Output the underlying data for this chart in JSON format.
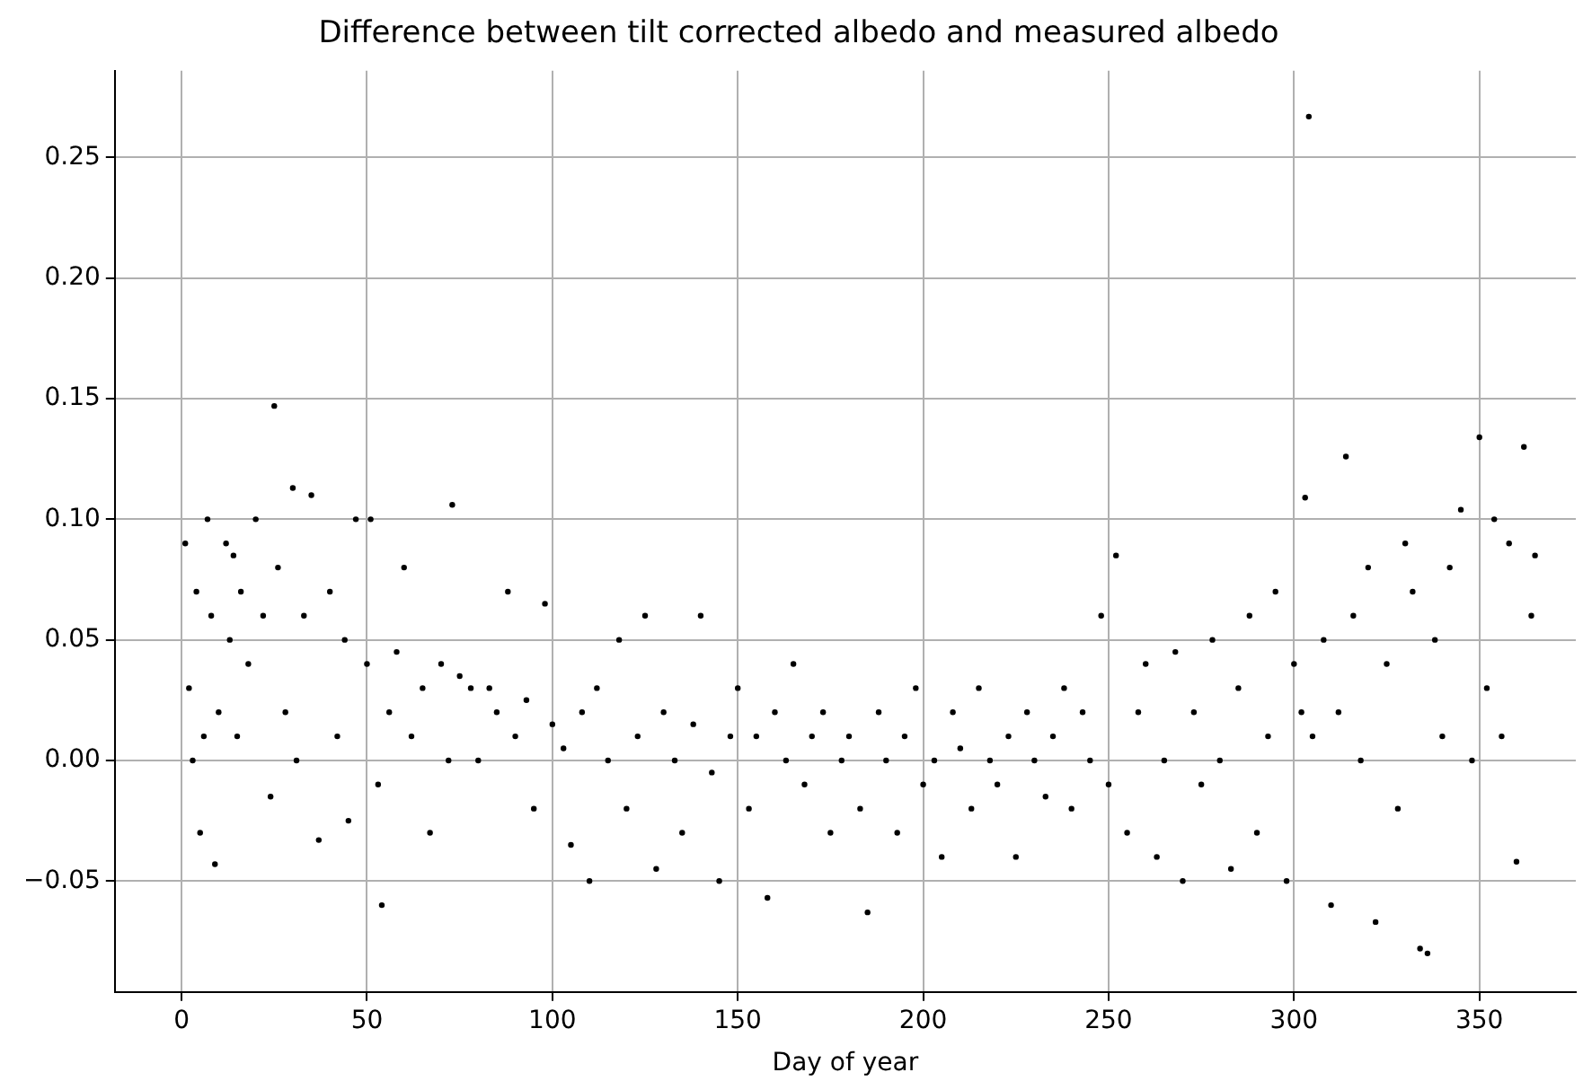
{
  "chart_data": {
    "type": "scatter",
    "title": "Difference between tilt corrected albedo and measured albedo",
    "xlabel": "Day of year",
    "x": [
      1,
      2,
      3,
      4,
      5,
      6,
      7,
      8,
      9,
      10,
      12,
      13,
      14,
      15,
      16,
      18,
      20,
      22,
      24,
      25,
      26,
      28,
      30,
      31,
      33,
      35,
      37,
      40,
      42,
      44,
      45,
      47,
      50,
      51,
      53,
      54,
      56,
      58,
      60,
      62,
      65,
      67,
      70,
      72,
      73,
      75,
      78,
      80,
      83,
      85,
      88,
      90,
      93,
      95,
      98,
      100,
      103,
      105,
      108,
      110,
      112,
      115,
      118,
      120,
      123,
      125,
      128,
      130,
      133,
      135,
      138,
      140,
      143,
      145,
      148,
      150,
      153,
      155,
      158,
      160,
      163,
      165,
      168,
      170,
      173,
      175,
      178,
      180,
      183,
      185,
      188,
      190,
      193,
      195,
      198,
      200,
      203,
      205,
      208,
      210,
      213,
      215,
      218,
      220,
      223,
      225,
      228,
      230,
      233,
      235,
      238,
      240,
      243,
      245,
      248,
      250,
      252,
      255,
      258,
      260,
      263,
      265,
      268,
      270,
      273,
      275,
      278,
      280,
      283,
      285,
      288,
      290,
      293,
      295,
      298,
      300,
      302,
      303,
      304,
      305,
      308,
      310,
      312,
      314,
      316,
      318,
      320,
      322,
      325,
      328,
      330,
      332,
      334,
      336,
      338,
      340,
      342,
      345,
      348,
      350,
      352,
      354,
      356,
      358,
      360,
      362,
      364,
      365
    ],
    "values": [
      0.09,
      0.03,
      0.0,
      0.07,
      -0.03,
      0.01,
      0.1,
      0.06,
      -0.043,
      0.02,
      0.09,
      0.05,
      0.085,
      0.01,
      0.07,
      0.04,
      0.1,
      0.06,
      -0.015,
      0.147,
      0.08,
      0.02,
      0.113,
      0.0,
      0.06,
      0.11,
      -0.033,
      0.07,
      0.01,
      0.05,
      -0.025,
      0.1,
      0.04,
      0.1,
      -0.01,
      -0.06,
      0.02,
      0.045,
      0.08,
      0.01,
      0.03,
      -0.03,
      0.04,
      0.0,
      0.106,
      0.035,
      0.03,
      0.0,
      0.03,
      0.02,
      0.07,
      0.01,
      0.025,
      -0.02,
      0.065,
      0.015,
      0.005,
      -0.035,
      0.02,
      -0.05,
      0.03,
      0.0,
      0.05,
      -0.02,
      0.01,
      0.06,
      -0.045,
      0.02,
      0.0,
      -0.03,
      0.015,
      0.06,
      -0.005,
      -0.05,
      0.01,
      0.03,
      -0.02,
      0.01,
      -0.057,
      0.02,
      0.0,
      0.04,
      -0.01,
      0.01,
      0.02,
      -0.03,
      0.0,
      0.01,
      -0.02,
      -0.063,
      0.02,
      0.0,
      -0.03,
      0.01,
      0.03,
      -0.01,
      0.0,
      -0.04,
      0.02,
      0.005,
      -0.02,
      0.03,
      0.0,
      -0.01,
      0.01,
      -0.04,
      0.02,
      0.0,
      -0.015,
      0.01,
      0.03,
      -0.02,
      0.02,
      0.0,
      0.06,
      -0.01,
      0.085,
      -0.03,
      0.02,
      0.04,
      -0.04,
      0.0,
      0.045,
      -0.05,
      0.02,
      -0.01,
      0.05,
      0.0,
      -0.045,
      0.03,
      0.06,
      -0.03,
      0.01,
      0.07,
      -0.05,
      0.04,
      0.02,
      0.109,
      0.267,
      0.01,
      0.05,
      -0.06,
      0.02,
      0.126,
      0.06,
      0.0,
      0.08,
      -0.067,
      0.04,
      -0.02,
      0.09,
      0.07,
      -0.078,
      -0.08,
      0.05,
      0.01,
      0.08,
      0.104,
      0.0,
      0.134,
      0.03,
      0.1,
      0.01,
      0.09,
      -0.042,
      0.13,
      0.06,
      0.085
    ],
    "color": "#000000",
    "marker": "circle",
    "xlim": [
      -18,
      376
    ],
    "ylim": [
      -0.096,
      0.286
    ],
    "xticks": [
      0,
      50,
      100,
      150,
      200,
      250,
      300,
      350
    ],
    "yticks": [
      {
        "value": -0.05,
        "label": "−0.05"
      },
      {
        "value": 0,
        "label": "0.00"
      },
      {
        "value": 0.05,
        "label": "0.05"
      },
      {
        "value": 0.1,
        "label": "0.10"
      },
      {
        "value": 0.15,
        "label": "0.15"
      },
      {
        "value": 0.2,
        "label": "0.20"
      },
      {
        "value": 0.25,
        "label": "0.25"
      }
    ],
    "grid": true,
    "legend": false
  }
}
